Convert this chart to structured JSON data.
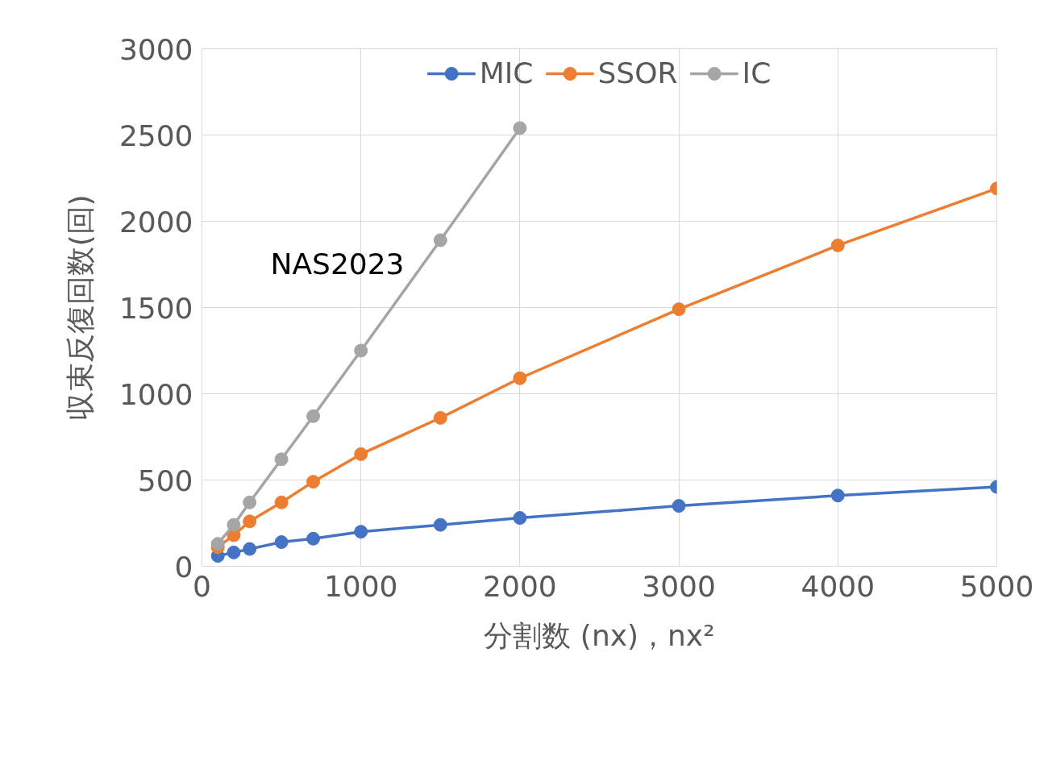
{
  "chart_data": {
    "type": "line",
    "xlabel": "分割数 (nx)，nx²",
    "ylabel": "収束反復回数(回)",
    "x": [
      100,
      200,
      300,
      500,
      700,
      1000,
      1500,
      2000,
      3000,
      4000,
      5000
    ],
    "series": [
      {
        "name": "MIC",
        "color": "#4472c4",
        "values": [
          60,
          80,
          100,
          140,
          160,
          200,
          240,
          280,
          350,
          410,
          460
        ]
      },
      {
        "name": "SSOR",
        "color": "#ed7d31",
        "values": [
          110,
          180,
          260,
          370,
          490,
          650,
          860,
          1090,
          1490,
          1860,
          2190
        ]
      },
      {
        "name": "IC",
        "color": "#a5a5a5",
        "values": [
          130,
          240,
          370,
          620,
          870,
          1250,
          1890,
          2540,
          null,
          null,
          null
        ]
      }
    ],
    "xlim": [
      0,
      5000
    ],
    "ylim": [
      0,
      3000
    ],
    "xticks": [
      0,
      1000,
      2000,
      3000,
      4000,
      5000
    ],
    "yticks": [
      0,
      500,
      1000,
      1500,
      2000,
      2500,
      3000
    ],
    "grid": true,
    "legend": "top",
    "marker": "circle",
    "line_style": "solid",
    "annotations": [
      "NAS2023"
    ]
  }
}
